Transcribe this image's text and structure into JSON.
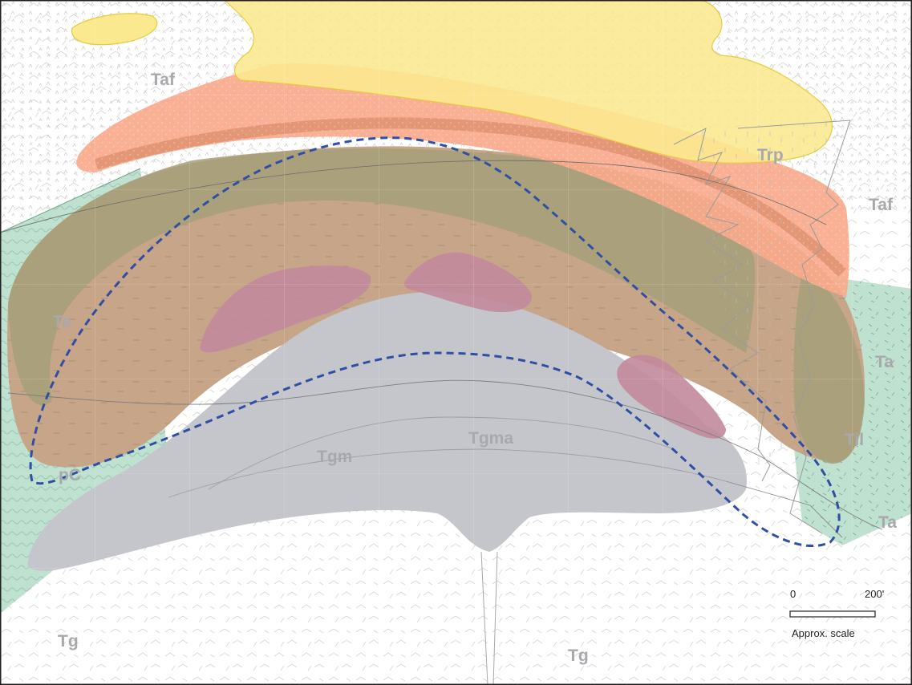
{
  "map": {
    "unit_labels": {
      "taf_left": "Taf",
      "taf_right": "Taf",
      "trp": "Trp",
      "ta_left": "Ta",
      "ta_right_upper": "Ta",
      "ta_right_lower": "Ta",
      "til": "Til",
      "tgma": "Tgma",
      "tgm": "Tgm",
      "pc": "pC",
      "tg_left": "Tg",
      "tg_center": "Tg"
    },
    "scale_bar": {
      "start_label": "0",
      "end_label": "200'",
      "caption": "Approx. scale"
    },
    "colors": {
      "taf_tuff": "#f8a98b",
      "trp_rhyolite": "#fbe98f",
      "ta_andesite": "#c7a588",
      "ta_dark_band": "#a5a07a",
      "tgm_monzonite": "#c5c6cc",
      "intrusion_pink": "#c18a9c",
      "pc_green": "#bfe1cf",
      "ore_outline": "#2e4fa3",
      "label_gray": "#a7a9ac"
    }
  }
}
